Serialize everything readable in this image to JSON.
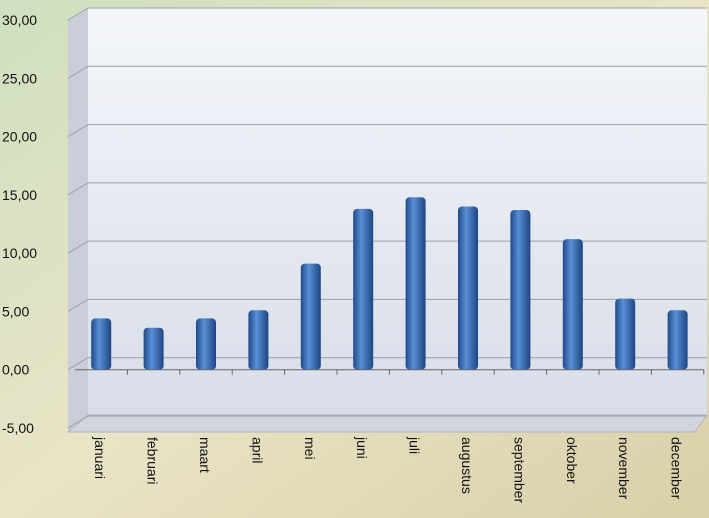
{
  "chart_data": {
    "type": "bar",
    "categories": [
      "januari",
      "februari",
      "maart",
      "april",
      "mei",
      "juni",
      "juli",
      "augustus",
      "september",
      "oktober",
      "november",
      "december"
    ],
    "values": [
      4.4,
      3.6,
      4.4,
      5.1,
      9.1,
      13.8,
      14.8,
      14.0,
      13.7,
      11.2,
      6.1,
      5.1
    ],
    "color": "#3a6db5",
    "ylim": [
      -5,
      30
    ],
    "yticks": [
      {
        "value": -5,
        "label": "-5,00"
      },
      {
        "value": 0,
        "label": "0,00"
      },
      {
        "value": 5,
        "label": "5,00"
      },
      {
        "value": 10,
        "label": "10,00"
      },
      {
        "value": 15,
        "label": "15,00"
      },
      {
        "value": 20,
        "label": "20,00"
      },
      {
        "value": 25,
        "label": "25,00"
      },
      {
        "value": 30,
        "label": "30,00"
      }
    ],
    "grid": true
  }
}
